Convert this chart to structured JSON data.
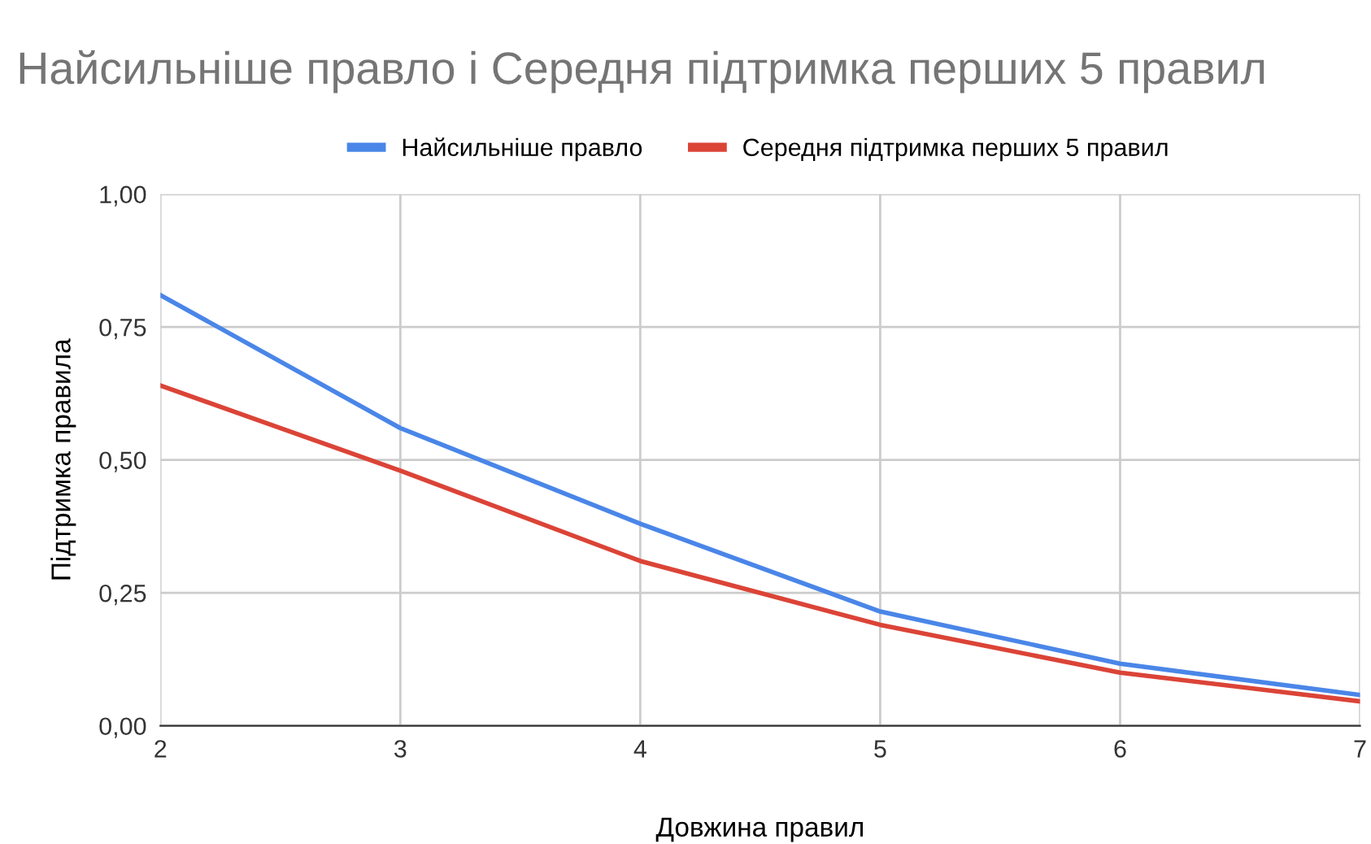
{
  "chart_data": {
    "type": "line",
    "title": "Найсильніше правло і Середня підтримка перших 5 правил",
    "xlabel": "Довжина правил",
    "ylabel": "Підтримка правила",
    "x": [
      2,
      3,
      4,
      5,
      6,
      7
    ],
    "series": [
      {
        "name": "Найсильніше правло",
        "color": "#4a86e8",
        "values": [
          0.81,
          0.56,
          0.38,
          0.215,
          0.117,
          0.058
        ]
      },
      {
        "name": "Середня підтримка перших 5 правил",
        "color": "#db4437",
        "values": [
          0.64,
          0.48,
          0.31,
          0.19,
          0.1,
          0.046
        ]
      }
    ],
    "xlim": [
      2,
      7
    ],
    "xticks": [
      2,
      3,
      4,
      5,
      6,
      7
    ],
    "ylim": [
      0,
      1
    ],
    "yticks": [
      {
        "value": 0,
        "label": "0,00"
      },
      {
        "value": 0.25,
        "label": "0,25"
      },
      {
        "value": 0.5,
        "label": "0,50"
      },
      {
        "value": 0.75,
        "label": "0,75"
      },
      {
        "value": 1,
        "label": "1,00"
      }
    ],
    "grid": true,
    "legend": "top",
    "marker": "none",
    "line_style": "solid"
  }
}
